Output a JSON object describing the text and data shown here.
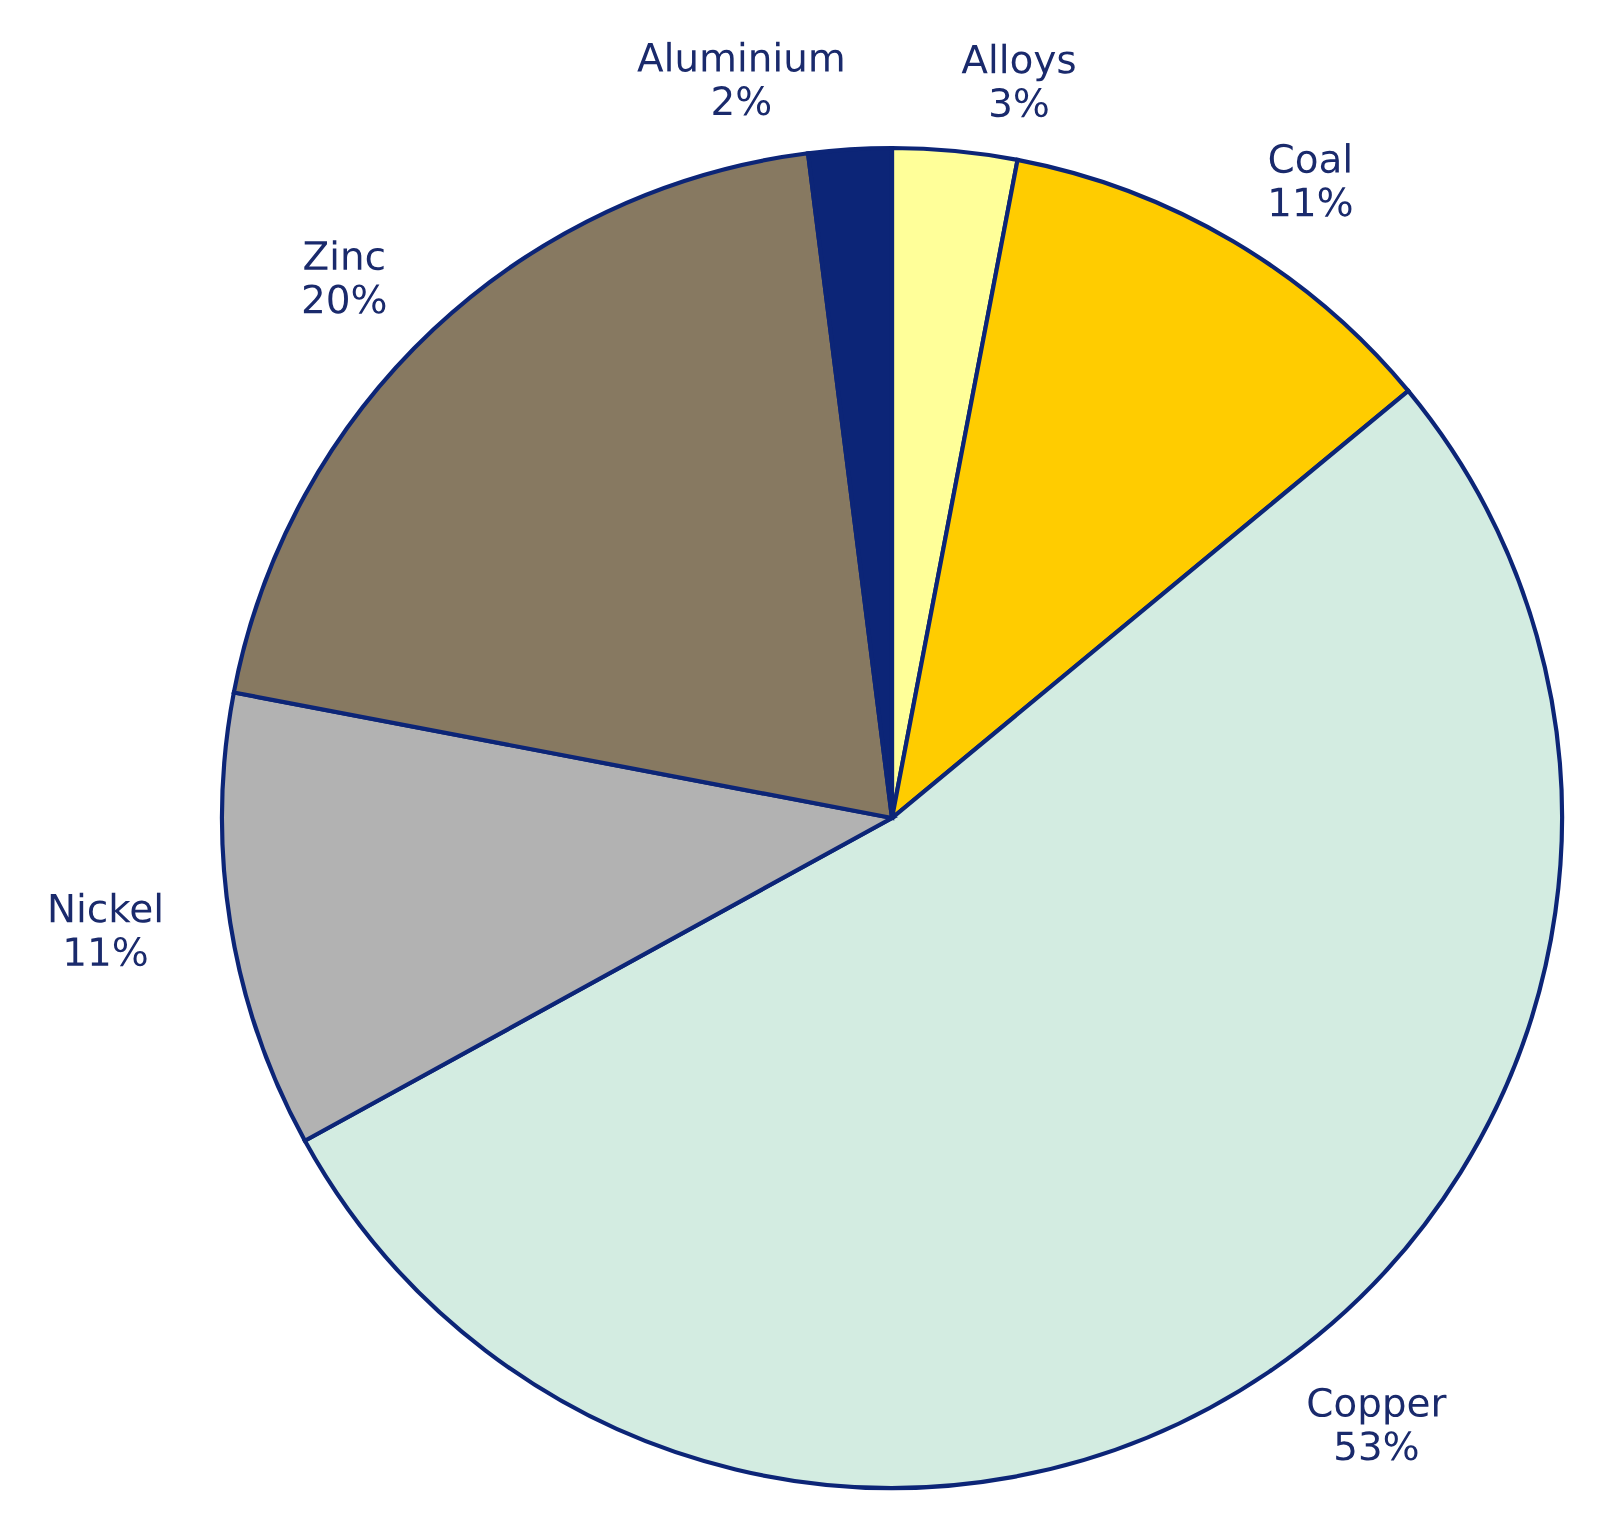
{
  "chart_data": {
    "type": "pie",
    "categories": [
      "Alloys",
      "Coal",
      "Copper",
      "Nickel",
      "Zinc",
      "Aluminium"
    ],
    "values": [
      3,
      11,
      53,
      11,
      20,
      2
    ],
    "value_labels": [
      "3%",
      "11%",
      "53%",
      "11%",
      "20%",
      "2%"
    ],
    "colors": [
      "#ffff99",
      "#ffcc00",
      "#d3ece1",
      "#b2b2b2",
      "#877961",
      "#0c2577"
    ],
    "legend": false
  }
}
